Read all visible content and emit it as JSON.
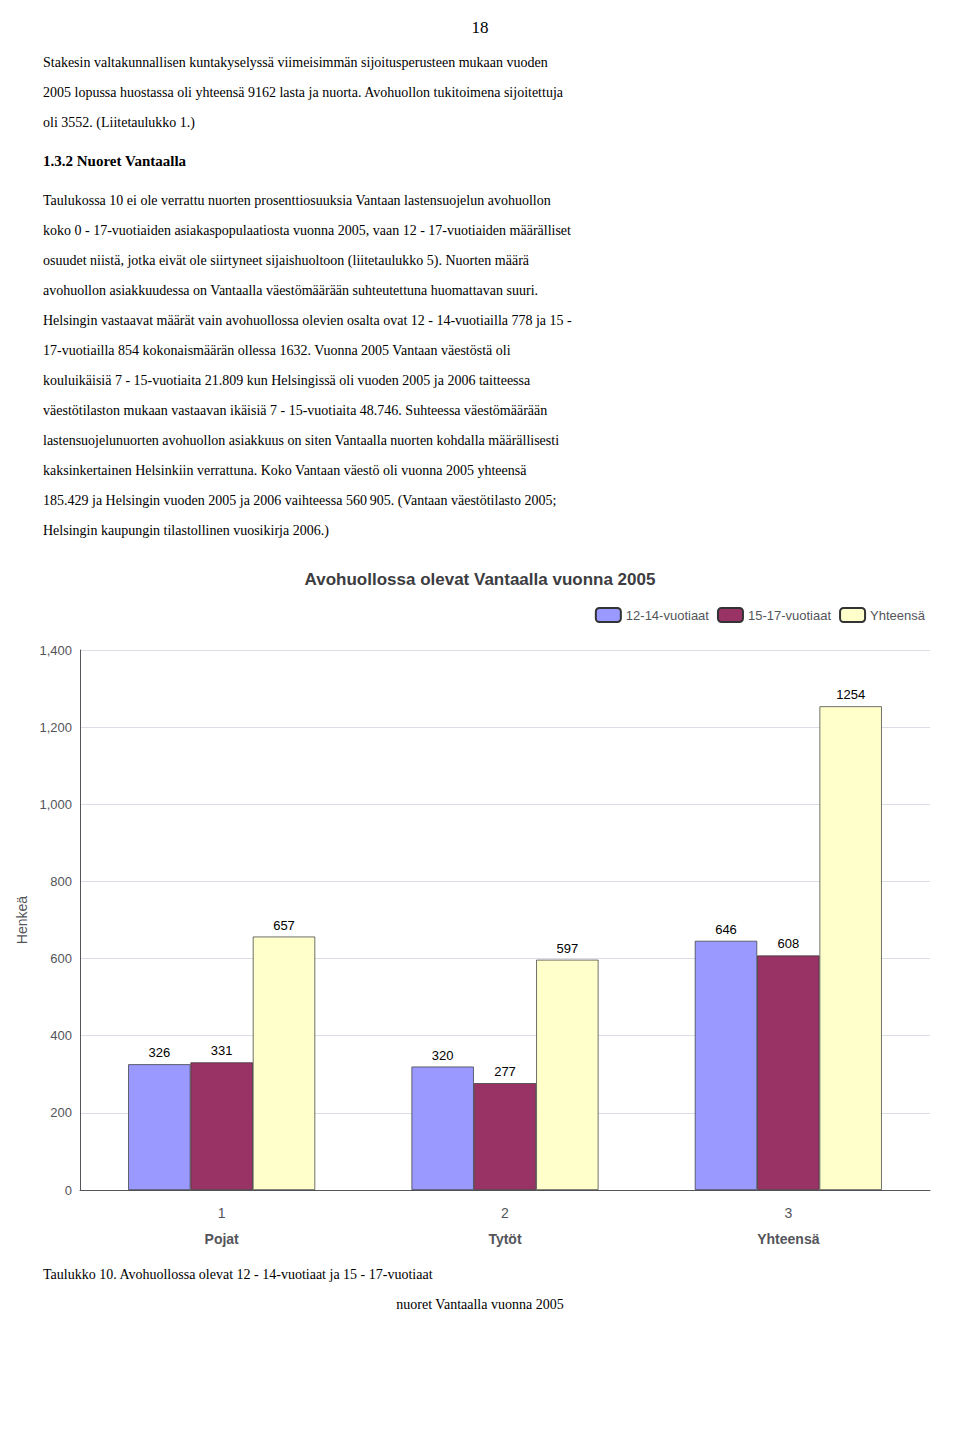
{
  "page_number": "18",
  "body_text": [
    "Stakesin valtakunnallisen kuntakyselyssä viimeisimmän sijoitusperusteen mukaan vuoden",
    "2005 lopussa huostassa oli yhteensä 9162 lasta ja nuorta. Avohuollon tukitoimena sijoitettuja",
    "oli 3552. (Liitetaulukko 1.)"
  ],
  "section_title": "1.3.2 Nuoret Vantaalla",
  "body_text2": [
    "Taulukossa 10 ei ole verrattu nuorten prosenttiosuuksia Vantaan lastensuojelun avohuollon",
    "koko 0 - 17-vuotiaiden asiakaspopulaatiosta vuonna 2005, vaan 12 - 17-vuotiaiden määrälliset",
    "osuudet niistä, jotka eivät ole siirtyneet sijaishuoltoon (liitetaulukko 5). Nuorten määrä",
    "avohuollon asiakkuudessa on Vantaalla väestömäärään suhteutettuna huomattavan suuri.",
    "Helsingin vastaavat määrät vain avohuollossa olevien osalta ovat 12 - 14-vuotiailla 778 ja 15 -",
    "17-vuotiailla 854 kokonaismäärän ollessa 1632. Vuonna 2005 Vantaan väestöstä oli",
    "kouluikäisiä 7 - 15-vuotiaita 21.809 kun Helsingissä oli vuoden 2005 ja 2006 taitteessa",
    "väestötilaston mukaan vastaavan ikäisiä 7 - 15-vuotiaita 48.746. Suhteessa väestömäärään",
    "lastensuojelunuorten avohuollon asiakkuus on siten Vantaalla nuorten kohdalla määrällisesti",
    "kaksinkertainen Helsinkiin verrattuna. Koko Vantaan väestö oli vuonna 2005 yhteensä",
    "185.429 ja Helsingin vuoden 2005 ja 2006 vaihteessa 560 905. (Vantaan väestötilasto 2005;",
    "Helsingin kaupungin tilastollinen vuosikirja 2006.)"
  ],
  "caption": [
    "Taulukko 10. Avohuollossa olevat 12 - 14-vuotiaat ja 15 - 17-vuotiaat",
    "nuoret Vantaalla vuonna 2005"
  ],
  "chart_data": {
    "type": "bar",
    "title": "Avohuollossa olevat Vantaalla vuonna 2005",
    "categories": [
      "1",
      "2",
      "3"
    ],
    "category_names": [
      "Pojat",
      "Tytöt",
      "Yhteensä"
    ],
    "series": [
      {
        "name": "12-14-vuotiaat",
        "color": "#9999ff",
        "values": [
          326,
          320,
          646
        ]
      },
      {
        "name": "15-17-vuotiaat",
        "color": "#993366",
        "values": [
          331,
          277,
          608
        ]
      },
      {
        "name": "Yhteensä",
        "color": "#ffffcc",
        "values": [
          657,
          597,
          1254
        ]
      }
    ],
    "ylabel": "Henkeä",
    "ylim": [
      0,
      1400
    ],
    "yticks": [
      0,
      200,
      400,
      600,
      800,
      1000,
      1200,
      1400
    ],
    "grid": true,
    "legend": "upper right",
    "data_labels": true
  }
}
